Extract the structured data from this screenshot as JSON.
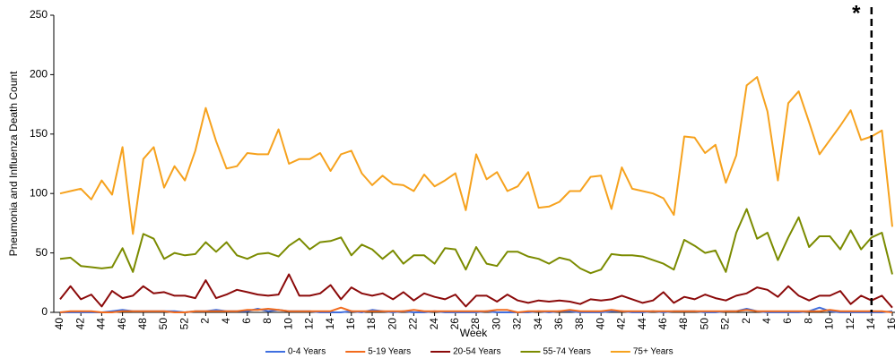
{
  "chart_data": {
    "type": "line",
    "x_label": "Week",
    "y_label": "Pneumonia and Influenza Death Count",
    "categories": [
      "40",
      null,
      "42",
      null,
      "44",
      null,
      "46",
      null,
      "48",
      null,
      "50",
      null,
      "52",
      null,
      "2",
      null,
      "4",
      null,
      "6",
      null,
      "8",
      null,
      "10",
      null,
      "12",
      null,
      "14",
      null,
      "16",
      null,
      "18",
      null,
      "20",
      null,
      "22",
      null,
      "24",
      null,
      "26",
      null,
      "28",
      null,
      "30",
      null,
      "32",
      null,
      "34",
      null,
      "36",
      null,
      "38",
      null,
      "40",
      null,
      "42",
      null,
      "44",
      null,
      "46",
      null,
      "48",
      null,
      "50",
      null,
      "52",
      null,
      "2",
      null,
      "4",
      null,
      "6",
      null,
      "8",
      null,
      "10",
      null,
      "12",
      null,
      "14",
      null,
      "16"
    ],
    "series": [
      {
        "name": "0-4 Years",
        "color": "#3f6fe0",
        "values": [
          0,
          0,
          0,
          0,
          0,
          1,
          2,
          1,
          1,
          1,
          1,
          1,
          0,
          1,
          1,
          2,
          1,
          1,
          1,
          3,
          1,
          2,
          1,
          1,
          1,
          0,
          0,
          0,
          1,
          0,
          2,
          1,
          0,
          1,
          0,
          0,
          1,
          0,
          0,
          0,
          0,
          1,
          0,
          0,
          0,
          0,
          1,
          0,
          1,
          1,
          0,
          0,
          0,
          1,
          1,
          0,
          0,
          1,
          0,
          1,
          1,
          1,
          0,
          0,
          1,
          1,
          3,
          1,
          0,
          0,
          0,
          0,
          1,
          4,
          1,
          0,
          0,
          0,
          0,
          0,
          1
        ]
      },
      {
        "name": "5-19 Years",
        "color": "#f26b1d",
        "values": [
          0,
          1,
          1,
          1,
          0,
          0,
          1,
          1,
          1,
          1,
          1,
          0,
          0,
          1,
          1,
          1,
          1,
          1,
          2,
          2,
          3,
          2,
          1,
          1,
          1,
          1,
          1,
          4,
          1,
          1,
          1,
          1,
          1,
          1,
          2,
          1,
          1,
          1,
          1,
          1,
          1,
          1,
          2,
          2,
          0,
          1,
          1,
          1,
          1,
          2,
          1,
          1,
          1,
          2,
          1,
          1,
          1,
          1,
          1,
          1,
          1,
          1,
          1,
          1,
          1,
          1,
          2,
          1,
          1,
          1,
          1,
          1,
          1,
          1,
          2,
          1,
          1,
          1,
          1,
          1,
          0
        ]
      },
      {
        "name": "20-54 Years",
        "color": "#8b0a0a",
        "values": [
          11,
          22,
          11,
          15,
          5,
          18,
          12,
          14,
          22,
          16,
          17,
          14,
          14,
          12,
          27,
          12,
          15,
          19,
          17,
          15,
          14,
          15,
          32,
          14,
          14,
          16,
          23,
          11,
          21,
          16,
          14,
          16,
          11,
          17,
          10,
          16,
          13,
          11,
          15,
          5,
          14,
          14,
          9,
          15,
          10,
          8,
          10,
          9,
          10,
          9,
          7,
          11,
          10,
          11,
          14,
          11,
          8,
          10,
          17,
          8,
          13,
          11,
          15,
          12,
          10,
          14,
          16,
          21,
          19,
          13,
          22,
          14,
          10,
          14,
          14,
          18,
          7,
          14,
          10,
          14,
          4
        ]
      },
      {
        "name": "55-74 Years",
        "color": "#7b8b00",
        "values": [
          45,
          46,
          39,
          38,
          37,
          38,
          54,
          34,
          66,
          62,
          45,
          50,
          48,
          49,
          59,
          51,
          59,
          48,
          45,
          49,
          50,
          47,
          56,
          62,
          53,
          59,
          60,
          63,
          48,
          57,
          53,
          45,
          52,
          41,
          48,
          48,
          41,
          54,
          53,
          36,
          55,
          41,
          39,
          51,
          51,
          47,
          45,
          41,
          46,
          44,
          37,
          33,
          36,
          49,
          48,
          48,
          47,
          44,
          41,
          36,
          61,
          56,
          50,
          52,
          34,
          67,
          87,
          62,
          67,
          44,
          63,
          80,
          55,
          64,
          64,
          53,
          69,
          53,
          63,
          67,
          32
        ]
      },
      {
        "name": "75+ Years",
        "color": "#f6a21e",
        "values": [
          100,
          102,
          104,
          95,
          111,
          99,
          139,
          66,
          129,
          139,
          105,
          123,
          111,
          136,
          172,
          144,
          121,
          123,
          134,
          133,
          133,
          154,
          125,
          129,
          129,
          134,
          119,
          133,
          136,
          117,
          107,
          115,
          108,
          107,
          102,
          116,
          106,
          111,
          117,
          86,
          133,
          112,
          118,
          102,
          106,
          118,
          88,
          89,
          93,
          102,
          102,
          114,
          115,
          87,
          122,
          104,
          102,
          100,
          96,
          82,
          148,
          147,
          134,
          141,
          109,
          132,
          191,
          198,
          169,
          111,
          176,
          186,
          160,
          133,
          145,
          157,
          170,
          145,
          148,
          153,
          72
        ]
      }
    ],
    "reference_line": {
      "index": 78,
      "label": "*"
    },
    "ylim": [
      0,
      250
    ],
    "yticks": [
      0,
      50,
      100,
      150,
      200,
      250
    ],
    "grid": false,
    "legend": "bottom"
  }
}
